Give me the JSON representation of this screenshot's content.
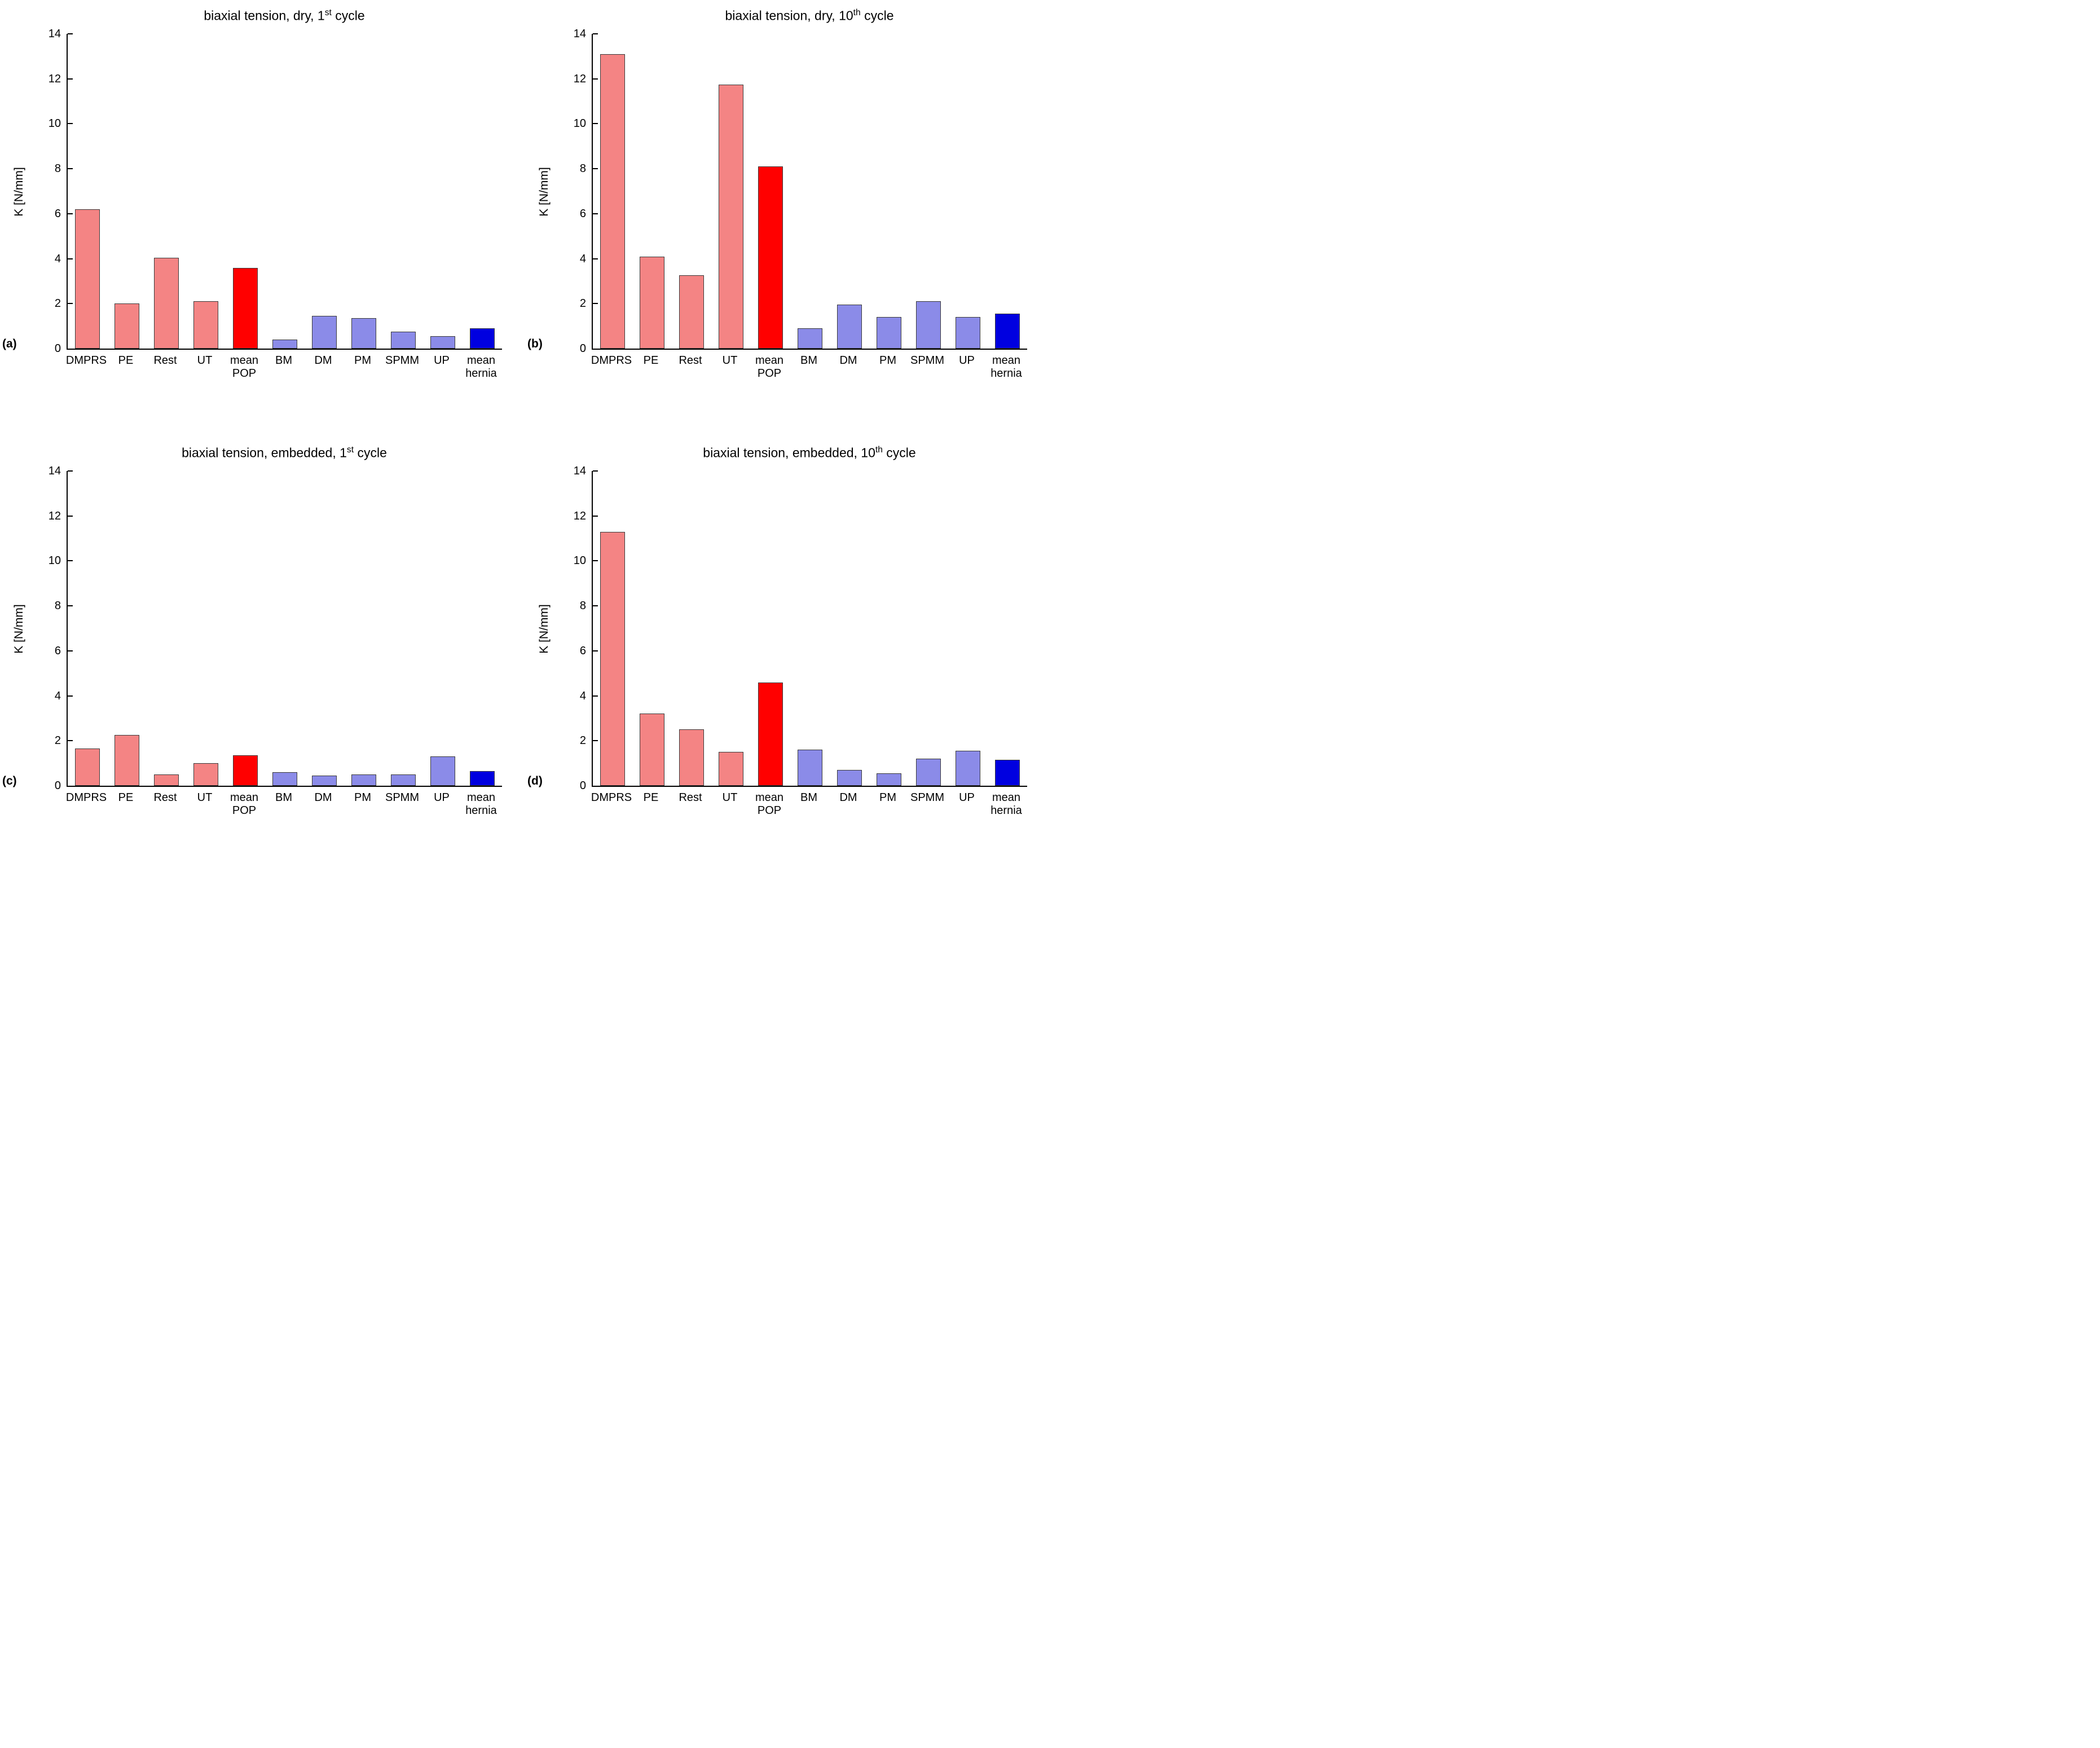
{
  "figure": {
    "ylabel": "K [N/mm]",
    "ylim": [
      0,
      14
    ],
    "yticks": [
      0,
      2,
      4,
      6,
      8,
      10,
      12,
      14
    ],
    "grid": false,
    "legend": "none",
    "category_lines": [
      [
        "DMPRS"
      ],
      [
        "PE"
      ],
      [
        "Rest"
      ],
      [
        "UT"
      ],
      [
        "mean",
        "POP"
      ],
      [
        "BM"
      ],
      [
        "DM"
      ],
      [
        "PM"
      ],
      [
        "SPMM"
      ],
      [
        "UP"
      ],
      [
        "mean",
        "hernia"
      ]
    ],
    "bar_color_keys": [
      "pop",
      "pop",
      "pop",
      "pop",
      "pop_mean",
      "hernia",
      "hernia",
      "hernia",
      "hernia",
      "hernia",
      "hernia_mean"
    ],
    "colors": {
      "pop": "#F48484",
      "pop_mean": "#FF0000",
      "hernia": "#8B8BE8",
      "hernia_mean": "#0000E0",
      "bar_edge": "#3A3A3A",
      "axis": "#000000"
    }
  },
  "chart_data": [
    {
      "type": "bar",
      "panel_label": "(a)",
      "title": {
        "prefix": "biaxial tension, dry, 1",
        "sup": "st",
        "suffix": " cycle",
        "full": "biaxial tension, dry, 1st cycle"
      },
      "xlabel": "",
      "ylabel": "K [N/mm]",
      "ylim": [
        0,
        14
      ],
      "categories": [
        "DMPRS",
        "PE",
        "Rest",
        "UT",
        "mean POP",
        "BM",
        "DM",
        "PM",
        "SPMM",
        "UP",
        "mean hernia"
      ],
      "values": [
        6.2,
        2.0,
        4.05,
        2.1,
        3.6,
        0.4,
        1.45,
        1.35,
        0.75,
        0.55,
        0.9
      ]
    },
    {
      "type": "bar",
      "panel_label": "(b)",
      "title": {
        "prefix": "biaxial tension, dry, 10",
        "sup": "th",
        "suffix": " cycle",
        "full": "biaxial tension, dry, 10th cycle"
      },
      "xlabel": "",
      "ylabel": "K [N/mm]",
      "ylim": [
        0,
        14
      ],
      "categories": [
        "DMPRS",
        "PE",
        "Rest",
        "UT",
        "mean POP",
        "BM",
        "DM",
        "PM",
        "SPMM",
        "UP",
        "mean hernia"
      ],
      "values": [
        13.1,
        4.1,
        3.25,
        11.75,
        8.1,
        0.9,
        1.95,
        1.4,
        2.1,
        1.4,
        1.55
      ]
    },
    {
      "type": "bar",
      "panel_label": "(c)",
      "title": {
        "prefix": "biaxial tension, embedded, 1",
        "sup": "st",
        "suffix": " cycle",
        "full": "biaxial tension, embedded, 1st cycle"
      },
      "xlabel": "",
      "ylabel": "K [N/mm]",
      "ylim": [
        0,
        14
      ],
      "categories": [
        "DMPRS",
        "PE",
        "Rest",
        "UT",
        "mean POP",
        "BM",
        "DM",
        "PM",
        "SPMM",
        "UP",
        "mean hernia"
      ],
      "values": [
        1.65,
        2.25,
        0.5,
        1.0,
        1.35,
        0.6,
        0.45,
        0.5,
        0.5,
        1.3,
        0.65
      ]
    },
    {
      "type": "bar",
      "panel_label": "(d)",
      "title": {
        "prefix": "biaxial tension, embedded, 10",
        "sup": "th",
        "suffix": " cycle",
        "full": "biaxial tension, embedded, 10th cycle"
      },
      "xlabel": "",
      "ylabel": "K [N/mm]",
      "ylim": [
        0,
        14
      ],
      "categories": [
        "DMPRS",
        "PE",
        "Rest",
        "UT",
        "mean POP",
        "BM",
        "DM",
        "PM",
        "SPMM",
        "UP",
        "mean hernia"
      ],
      "values": [
        11.3,
        3.2,
        2.5,
        1.5,
        4.6,
        1.6,
        0.7,
        0.55,
        1.2,
        1.55,
        1.15
      ]
    }
  ]
}
